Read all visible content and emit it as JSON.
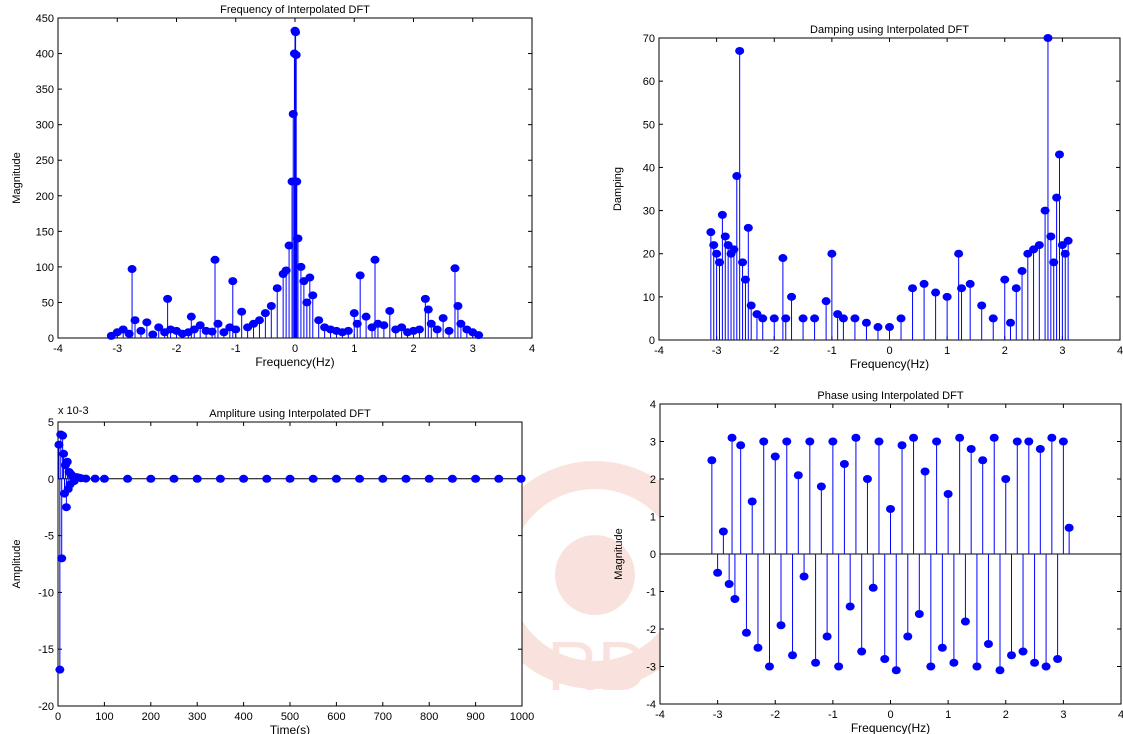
{
  "chart_data": [
    {
      "type": "stem",
      "title": "Frequency of Interpolated DFT",
      "xlabel": "Frequency(Hz)",
      "ylabel": "Magnitude",
      "xlim": [
        -4,
        4
      ],
      "ylim": [
        0,
        450
      ],
      "xticks": [
        -4,
        -3,
        -2,
        -1,
        0,
        1,
        2,
        3,
        4
      ],
      "yticks": [
        0,
        50,
        100,
        150,
        200,
        250,
        300,
        350,
        400,
        450
      ],
      "exponent_label": "",
      "color": "#0000ff",
      "grid": false,
      "series": [
        {
          "x": [
            -3.1,
            -3.0,
            -2.9,
            -2.8,
            -2.75,
            -2.7,
            -2.6,
            -2.5,
            -2.4,
            -2.3,
            -2.2,
            -2.15,
            -2.1,
            -2.0,
            -1.9,
            -1.8,
            -1.75,
            -1.7,
            -1.6,
            -1.5,
            -1.4,
            -1.35,
            -1.3,
            -1.2,
            -1.1,
            -1.05,
            -1.0,
            -0.9,
            -0.8,
            -0.7,
            -0.6,
            -0.5,
            -0.4,
            -0.3,
            -0.2,
            -0.15,
            -0.1,
            -0.05,
            -0.03,
            -0.01,
            0.0,
            0.01,
            0.02,
            0.03,
            0.05,
            0.1,
            0.15,
            0.2,
            0.25,
            0.3,
            0.4,
            0.5,
            0.6,
            0.7,
            0.8,
            0.9,
            1.0,
            1.05,
            1.1,
            1.2,
            1.3,
            1.35,
            1.4,
            1.5,
            1.6,
            1.7,
            1.8,
            1.9,
            2.0,
            2.1,
            2.2,
            2.25,
            2.3,
            2.4,
            2.5,
            2.6,
            2.7,
            2.75,
            2.8,
            2.9,
            3.0,
            3.1
          ],
          "y": [
            3,
            8,
            12,
            6,
            97,
            25,
            10,
            22,
            5,
            15,
            8,
            55,
            12,
            10,
            6,
            8,
            30,
            12,
            18,
            10,
            9,
            110,
            20,
            8,
            15,
            80,
            12,
            37,
            15,
            20,
            25,
            35,
            45,
            70,
            90,
            95,
            130,
            220,
            315,
            400,
            432,
            430,
            398,
            220,
            140,
            100,
            80,
            50,
            85,
            60,
            25,
            15,
            12,
            10,
            8,
            10,
            35,
            20,
            88,
            30,
            15,
            110,
            20,
            18,
            38,
            12,
            15,
            8,
            10,
            12,
            55,
            40,
            20,
            12,
            28,
            10,
            98,
            45,
            20,
            12,
            8,
            4
          ]
        }
      ]
    },
    {
      "type": "stem",
      "title": "Damping using Interpolated DFT",
      "xlabel": "Frequency(Hz)",
      "ylabel": "Damping",
      "xlim": [
        -4,
        4
      ],
      "ylim": [
        0,
        70
      ],
      "xticks": [
        -4,
        -3,
        -2,
        -1,
        0,
        1,
        2,
        3,
        4
      ],
      "yticks": [
        0,
        10,
        20,
        30,
        40,
        50,
        60,
        70
      ],
      "exponent_label": "",
      "color": "#0000ff",
      "grid": false,
      "series": [
        {
          "x": [
            -3.1,
            -3.05,
            -3.0,
            -2.95,
            -2.9,
            -2.85,
            -2.8,
            -2.75,
            -2.7,
            -2.65,
            -2.6,
            -2.55,
            -2.5,
            -2.45,
            -2.4,
            -2.3,
            -2.2,
            -2.0,
            -1.85,
            -1.8,
            -1.7,
            -1.5,
            -1.3,
            -1.1,
            -1.0,
            -0.9,
            -0.8,
            -0.6,
            -0.4,
            -0.2,
            0.0,
            0.2,
            0.4,
            0.6,
            0.8,
            1.0,
            1.2,
            1.25,
            1.4,
            1.6,
            1.8,
            2.0,
            2.1,
            2.2,
            2.3,
            2.4,
            2.5,
            2.6,
            2.7,
            2.75,
            2.8,
            2.85,
            2.9,
            2.95,
            3.0,
            3.05,
            3.1
          ],
          "y": [
            25,
            22,
            20,
            18,
            29,
            24,
            22,
            20,
            21,
            38,
            67,
            18,
            14,
            26,
            8,
            6,
            5,
            5,
            19,
            5,
            10,
            5,
            5,
            9,
            20,
            6,
            5,
            5,
            4,
            3,
            3,
            5,
            12,
            13,
            11,
            10,
            20,
            12,
            13,
            8,
            5,
            14,
            4,
            12,
            16,
            20,
            21,
            22,
            30,
            70,
            24,
            18,
            33,
            43,
            22,
            20,
            23
          ]
        }
      ]
    },
    {
      "type": "stem",
      "title": "Ampliture using Interpolated DFT",
      "xlabel": "Time(s)",
      "ylabel": "Amplitude",
      "xlim": [
        0,
        1000
      ],
      "ylim": [
        -20,
        5
      ],
      "xticks": [
        0,
        100,
        200,
        300,
        400,
        500,
        600,
        700,
        800,
        900,
        1000
      ],
      "yticks": [
        -20,
        -15,
        -10,
        -5,
        0,
        5
      ],
      "exponent_label": "x 10-3",
      "color": "#0000ff",
      "grid": false,
      "series": [
        {
          "x": [
            2,
            4,
            6,
            8,
            10,
            12,
            14,
            16,
            18,
            20,
            22,
            24,
            26,
            28,
            30,
            35,
            40,
            45,
            50,
            60,
            80,
            100,
            150,
            200,
            250,
            300,
            350,
            400,
            450,
            500,
            550,
            600,
            650,
            700,
            750,
            800,
            850,
            900,
            950,
            998
          ],
          "y": [
            3.0,
            -16.8,
            3.9,
            -7.0,
            3.8,
            2.2,
            -1.3,
            1.2,
            -2.5,
            1.5,
            -0.9,
            0.6,
            -0.5,
            0.4,
            0.3,
            -0.2,
            0.15,
            0.1,
            0.05,
            0.02,
            0.01,
            0.0,
            0.0,
            0.0,
            0.0,
            0.0,
            0.0,
            0.0,
            0.0,
            0.0,
            0.0,
            0.0,
            0.0,
            0.0,
            0.0,
            0.0,
            0.0,
            0.0,
            0.0,
            0.0
          ]
        }
      ]
    },
    {
      "type": "stem",
      "title": "Phase using Interpolated DFT",
      "xlabel": "Frequency(Hz)",
      "ylabel": "Magnitude",
      "xlim": [
        -4,
        4
      ],
      "ylim": [
        -4,
        4
      ],
      "xticks": [
        -4,
        -3,
        -2,
        -1,
        0,
        1,
        2,
        3,
        4
      ],
      "yticks": [
        -4,
        -3,
        -2,
        -1,
        0,
        1,
        2,
        3,
        4
      ],
      "exponent_label": "",
      "color": "#0000ff",
      "grid": false,
      "series": [
        {
          "x": [
            -3.1,
            -3.0,
            -2.9,
            -2.8,
            -2.75,
            -2.7,
            -2.6,
            -2.5,
            -2.4,
            -2.3,
            -2.2,
            -2.1,
            -2.0,
            -1.9,
            -1.8,
            -1.7,
            -1.6,
            -1.5,
            -1.4,
            -1.3,
            -1.2,
            -1.1,
            -1.0,
            -0.9,
            -0.8,
            -0.7,
            -0.6,
            -0.5,
            -0.4,
            -0.3,
            -0.2,
            -0.1,
            0.0,
            0.1,
            0.2,
            0.3,
            0.4,
            0.5,
            0.6,
            0.7,
            0.8,
            0.9,
            1.0,
            1.1,
            1.2,
            1.3,
            1.4,
            1.5,
            1.6,
            1.7,
            1.8,
            1.9,
            2.0,
            2.1,
            2.2,
            2.3,
            2.4,
            2.5,
            2.6,
            2.7,
            2.8,
            2.9,
            3.0,
            3.1
          ],
          "y": [
            2.5,
            -0.5,
            0.6,
            -0.8,
            3.1,
            -1.2,
            2.9,
            -2.1,
            1.4,
            -2.5,
            3.0,
            -3.0,
            2.6,
            -1.9,
            3.0,
            -2.7,
            2.1,
            -0.6,
            3.0,
            -2.9,
            1.8,
            -2.2,
            3.0,
            -3.0,
            2.4,
            -1.4,
            3.1,
            -2.6,
            2.0,
            -0.9,
            3.0,
            -2.8,
            1.2,
            -3.1,
            2.9,
            -2.2,
            3.1,
            -1.6,
            2.2,
            -3.0,
            3.0,
            -2.5,
            1.6,
            -2.9,
            3.1,
            -1.8,
            2.8,
            -3.0,
            2.5,
            -2.4,
            3.1,
            -3.1,
            2.0,
            -2.7,
            3.0,
            -2.6,
            3.0,
            -2.9,
            2.8,
            -3.0,
            3.1,
            -2.8,
            3.0,
            0.7
          ]
        }
      ]
    }
  ]
}
